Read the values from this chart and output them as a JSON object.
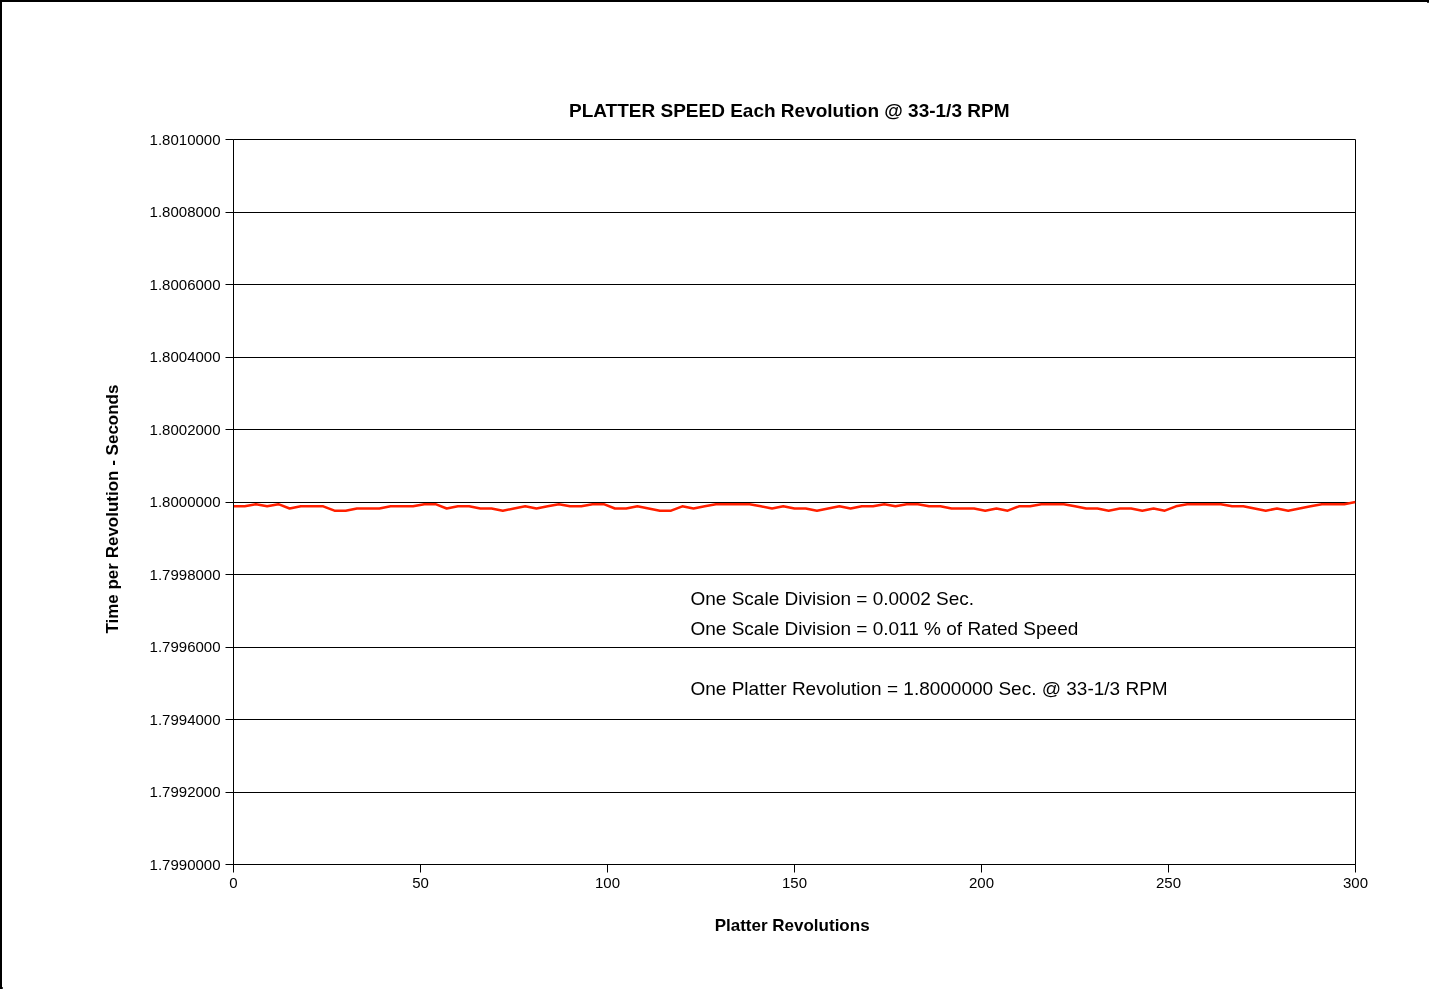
{
  "chart_data": {
    "type": "line",
    "title": "PLATTER SPEED  Each Revolution  @ 33-1/3 RPM",
    "xlabel": "Platter  Revolutions",
    "ylabel": "Time  per Revolution  -  Seconds",
    "x": [
      0,
      3,
      6,
      9,
      12,
      15,
      18,
      21,
      24,
      27,
      30,
      33,
      36,
      39,
      42,
      45,
      48,
      51,
      54,
      57,
      60,
      63,
      66,
      69,
      72,
      75,
      78,
      81,
      84,
      87,
      90,
      93,
      96,
      99,
      102,
      105,
      108,
      111,
      114,
      117,
      120,
      123,
      126,
      129,
      132,
      135,
      138,
      141,
      144,
      147,
      150,
      153,
      156,
      159,
      162,
      165,
      168,
      171,
      174,
      177,
      180,
      183,
      186,
      189,
      192,
      195,
      198,
      201,
      204,
      207,
      210,
      213,
      216,
      219,
      222,
      225,
      228,
      231,
      234,
      237,
      240,
      243,
      246,
      249,
      252,
      255,
      258,
      261,
      264,
      267,
      270,
      273,
      276,
      279,
      282,
      285,
      288,
      291,
      294,
      297,
      300
    ],
    "series": [
      {
        "color": "#ff2000",
        "values": [
          1.799988,
          1.799988,
          1.799994,
          1.799988,
          1.799994,
          1.799982,
          1.799988,
          1.799988,
          1.799988,
          1.799976,
          1.799976,
          1.799982,
          1.799982,
          1.799982,
          1.799988,
          1.799988,
          1.799988,
          1.799994,
          1.799994,
          1.799982,
          1.799988,
          1.799988,
          1.799982,
          1.799982,
          1.799976,
          1.799982,
          1.799988,
          1.799982,
          1.799988,
          1.799994,
          1.799988,
          1.799988,
          1.799994,
          1.799994,
          1.799982,
          1.799982,
          1.799988,
          1.799982,
          1.799976,
          1.799976,
          1.799988,
          1.799982,
          1.799988,
          1.799994,
          1.799994,
          1.799994,
          1.799994,
          1.799988,
          1.799982,
          1.799988,
          1.799982,
          1.799982,
          1.799976,
          1.799982,
          1.799988,
          1.799982,
          1.799988,
          1.799988,
          1.799994,
          1.799988,
          1.799994,
          1.799994,
          1.799988,
          1.799988,
          1.799982,
          1.799982,
          1.799982,
          1.799976,
          1.799982,
          1.799976,
          1.799988,
          1.799988,
          1.799994,
          1.799994,
          1.799994,
          1.799988,
          1.799982,
          1.799982,
          1.799976,
          1.799982,
          1.799982,
          1.799976,
          1.799982,
          1.799976,
          1.799988,
          1.799994,
          1.799994,
          1.799994,
          1.799994,
          1.799988,
          1.799988,
          1.799982,
          1.799976,
          1.799982,
          1.799976,
          1.799982,
          1.799988,
          1.799994,
          1.799994,
          1.799994,
          1.8
        ]
      }
    ],
    "xlim": [
      0,
      300
    ],
    "xticks": [
      0,
      50,
      100,
      150,
      200,
      250,
      300
    ],
    "ylim": [
      1.799,
      1.801
    ],
    "yticks": [
      {
        "value": 1.799,
        "label": "1.7990000"
      },
      {
        "value": 1.7992,
        "label": "1.7992000"
      },
      {
        "value": 1.7994,
        "label": "1.7994000"
      },
      {
        "value": 1.7996,
        "label": "1.7996000"
      },
      {
        "value": 1.7998,
        "label": "1.7998000"
      },
      {
        "value": 1.8,
        "label": "1.8000000"
      },
      {
        "value": 1.8002,
        "label": "1.8002000"
      },
      {
        "value": 1.8004,
        "label": "1.8004000"
      },
      {
        "value": 1.8006,
        "label": "1.8006000"
      },
      {
        "value": 1.8008,
        "label": "1.8008000"
      },
      {
        "value": 1.801,
        "label": "1.8010000"
      }
    ],
    "grid": "y",
    "marker": "none",
    "line_style": "solid",
    "annotations": [
      "One Scale Division  =  0.0002  Sec.",
      "One Scale Division  =  0.011 %  of Rated Speed",
      "One Platter Revolution   =  1.8000000  Sec.  @ 33-1/3  RPM"
    ]
  }
}
